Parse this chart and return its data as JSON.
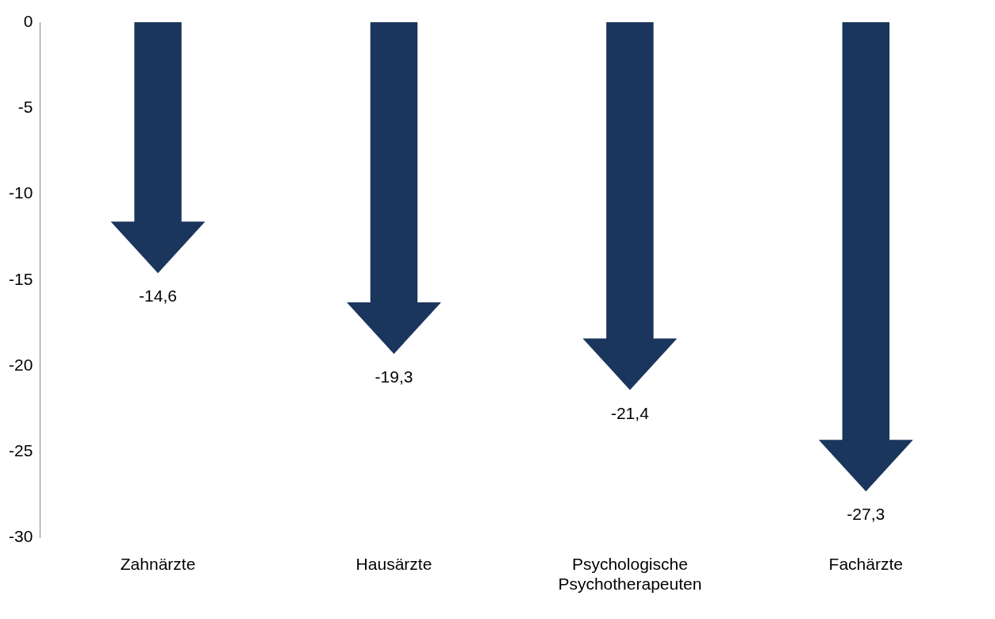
{
  "chart_data": {
    "type": "bar",
    "categories": [
      "Zahnärzte",
      "Hausärzte",
      "Psychologische Psychotherapeuten",
      "Fachärzte"
    ],
    "values": [
      -14.6,
      -19.3,
      -21.4,
      -27.3
    ],
    "color": "#1b365d",
    "value_labels": [
      "-14,6",
      "-19,3",
      "-21,4",
      "-27,3"
    ],
    "ylim": [
      -30,
      0
    ],
    "yticks": [
      0,
      -5,
      -10,
      -15,
      -20,
      -25,
      -30
    ],
    "grid": false,
    "legend": false
  }
}
